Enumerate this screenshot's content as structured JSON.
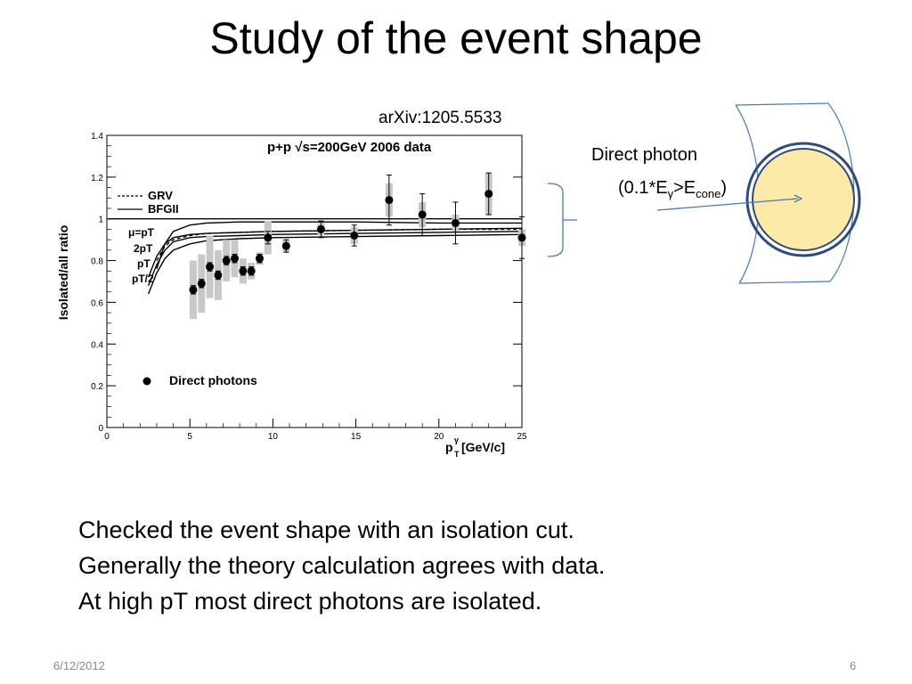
{
  "slide": {
    "title": "Study of the event shape",
    "reference": "arXiv:1205.5533",
    "photon_label": "Direct photon",
    "photon_condition": {
      "open": "(0.1*E",
      "sub1": "γ",
      "mid": ">E",
      "sub2": "cone",
      "close": ")"
    },
    "bullets": [
      "Checked the event shape with an isolation cut.",
      "Generally the theory calculation agrees with data.",
      "At high pT most direct photons are isolated."
    ],
    "footer_date": "6/12/2012",
    "footer_page": "6"
  },
  "colors": {
    "diagram_line": "#4a78b5",
    "circle_fill": "#fde9a8",
    "circle_stroke": "#2f4b78",
    "syst_band": "#c8c8c8"
  },
  "chart_data": {
    "type": "scatter",
    "title": "p+p   √s=200GeV 2006 data",
    "ylabel": "Isolated/all ratio",
    "xlabel": "p",
    "xlabel_sub": "T",
    "xlabel_sup": "γ",
    "xlabel_unit": "[GeV/c]",
    "xlim": [
      0,
      25
    ],
    "ylim": [
      0,
      1.4
    ],
    "xticks": [
      0,
      5,
      10,
      15,
      20,
      25
    ],
    "yticks": [
      0,
      0.2,
      0.4,
      0.6,
      0.8,
      1,
      1.2,
      1.4
    ],
    "ytick_labels": [
      "0",
      "0.2",
      "0.4",
      "0.6",
      "0.8",
      "1",
      "1.2",
      "1.4"
    ],
    "legend_lines": [
      {
        "label": "GRV",
        "style": "dashed"
      },
      {
        "label": "BFGII",
        "style": "solid"
      }
    ],
    "scale_labels": [
      "μ=pT",
      "2pT",
      "pT",
      "pT/2"
    ],
    "marker_legend": "Direct photons",
    "series": [
      {
        "name": "Direct photons",
        "points": [
          {
            "x": 5.2,
            "y": 0.66,
            "err": 0.02,
            "sys": 0.14
          },
          {
            "x": 5.7,
            "y": 0.69,
            "err": 0.02,
            "sys": 0.14
          },
          {
            "x": 6.2,
            "y": 0.77,
            "err": 0.02,
            "sys": 0.15
          },
          {
            "x": 6.7,
            "y": 0.73,
            "err": 0.02,
            "sys": 0.12
          },
          {
            "x": 7.2,
            "y": 0.8,
            "err": 0.02,
            "sys": 0.1
          },
          {
            "x": 7.7,
            "y": 0.81,
            "err": 0.02,
            "sys": 0.09
          },
          {
            "x": 8.2,
            "y": 0.75,
            "err": 0.02,
            "sys": 0.06
          },
          {
            "x": 8.7,
            "y": 0.75,
            "err": 0.02,
            "sys": 0.04
          },
          {
            "x": 9.2,
            "y": 0.81,
            "err": 0.02,
            "sys": 0.03
          },
          {
            "x": 9.7,
            "y": 0.91,
            "err": 0.03,
            "sys": 0.08
          },
          {
            "x": 10.8,
            "y": 0.87,
            "err": 0.03,
            "sys": 0.03
          },
          {
            "x": 12.9,
            "y": 0.95,
            "err": 0.04,
            "sys": 0.03
          },
          {
            "x": 14.9,
            "y": 0.92,
            "err": 0.05,
            "sys": 0.04
          },
          {
            "x": 17.0,
            "y": 1.09,
            "err": 0.12,
            "sys": 0.08
          },
          {
            "x": 19.0,
            "y": 1.02,
            "err": 0.1,
            "sys": 0.06
          },
          {
            "x": 21.0,
            "y": 0.98,
            "err": 0.1,
            "sys": 0.04
          },
          {
            "x": 23.0,
            "y": 1.12,
            "err": 0.1,
            "sys": 0.1
          },
          {
            "x": 25.0,
            "y": 0.91,
            "err": 0.1,
            "sys": 0.04
          }
        ]
      }
    ],
    "theory_curves": [
      {
        "style": "solid",
        "x": [
          3,
          3.5,
          4,
          5,
          6,
          8,
          10,
          15,
          20,
          25
        ],
        "y": [
          0.76,
          0.88,
          0.94,
          0.97,
          0.98,
          0.985,
          0.985,
          0.985,
          0.98,
          0.98
        ]
      },
      {
        "style": "dashed",
        "x": [
          3,
          3.5,
          4,
          5,
          6,
          8,
          10,
          15,
          20,
          25
        ],
        "y": [
          0.8,
          0.87,
          0.9,
          0.92,
          0.93,
          0.935,
          0.94,
          0.945,
          0.95,
          0.95
        ]
      },
      {
        "style": "solid",
        "x": [
          2.5,
          3,
          3.5,
          4,
          5,
          6,
          8,
          10,
          15,
          20,
          25
        ],
        "y": [
          0.72,
          0.82,
          0.88,
          0.91,
          0.925,
          0.93,
          0.935,
          0.94,
          0.945,
          0.95,
          0.955
        ]
      },
      {
        "style": "solid",
        "x": [
          2.5,
          3,
          3.5,
          4,
          5,
          6,
          8,
          10,
          15,
          20,
          25
        ],
        "y": [
          0.68,
          0.78,
          0.85,
          0.89,
          0.91,
          0.915,
          0.92,
          0.925,
          0.93,
          0.935,
          0.94
        ]
      },
      {
        "style": "solid",
        "x": [
          2.5,
          3,
          3.5,
          4,
          5,
          6,
          8,
          10,
          15,
          20,
          25
        ],
        "y": [
          0.64,
          0.74,
          0.81,
          0.85,
          0.88,
          0.895,
          0.905,
          0.91,
          0.915,
          0.92,
          0.925
        ]
      },
      {
        "style": "solid",
        "x": [
          0,
          25
        ],
        "y": [
          1.0,
          1.0
        ]
      }
    ]
  }
}
